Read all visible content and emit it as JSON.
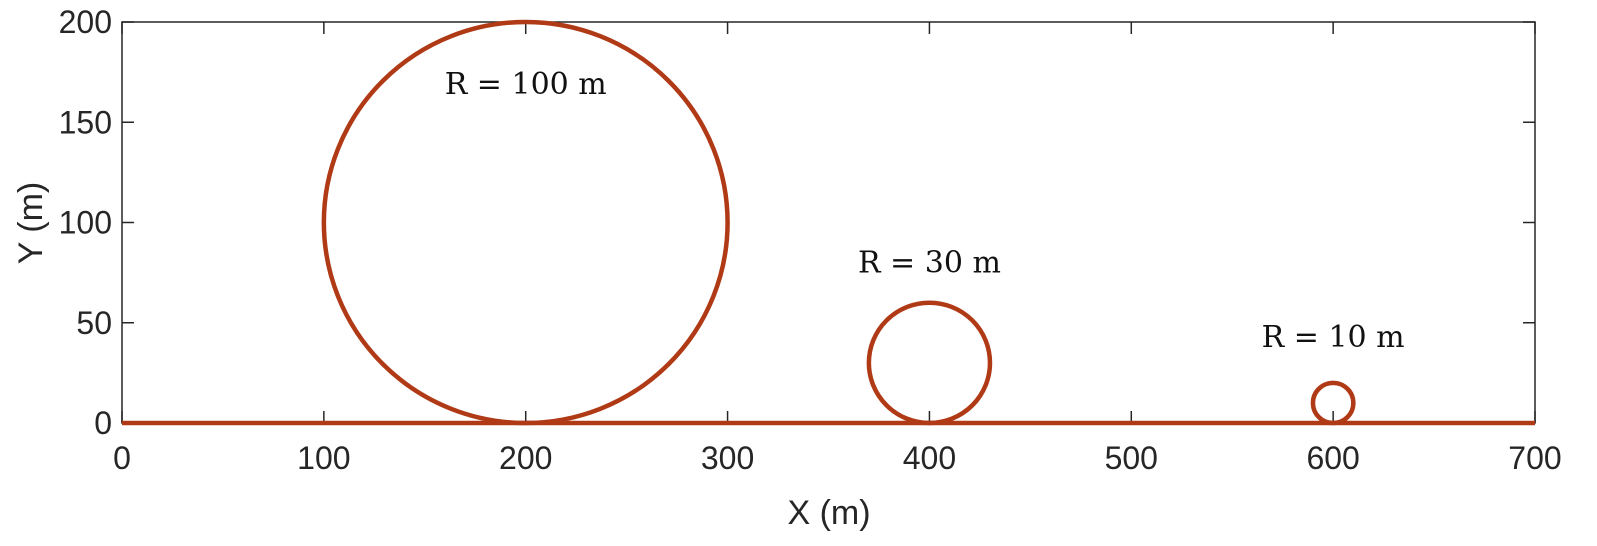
{
  "chart_data": {
    "type": "line",
    "title": "",
    "xlabel": "X (m)",
    "ylabel": "Y (m)",
    "xlim": [
      0,
      700
    ],
    "ylim": [
      0,
      200
    ],
    "xticks": [
      0,
      100,
      200,
      300,
      400,
      500,
      600,
      700
    ],
    "yticks": [
      0,
      50,
      100,
      150,
      200
    ],
    "grid": false,
    "line_color": "#B03A16",
    "ground": {
      "x": [
        0,
        700
      ],
      "y": [
        0,
        0
      ]
    },
    "circles": [
      {
        "center_x": 200,
        "center_y": 100,
        "radius": 100,
        "label": "R = 100 m",
        "label_x": 200,
        "label_y": 164
      },
      {
        "center_x": 400,
        "center_y": 30,
        "radius": 30,
        "label": "R = 30 m",
        "label_x": 400,
        "label_y": 75
      },
      {
        "center_x": 600,
        "center_y": 10,
        "radius": 10,
        "label": "R = 10 m",
        "label_x": 600,
        "label_y": 38
      }
    ]
  }
}
